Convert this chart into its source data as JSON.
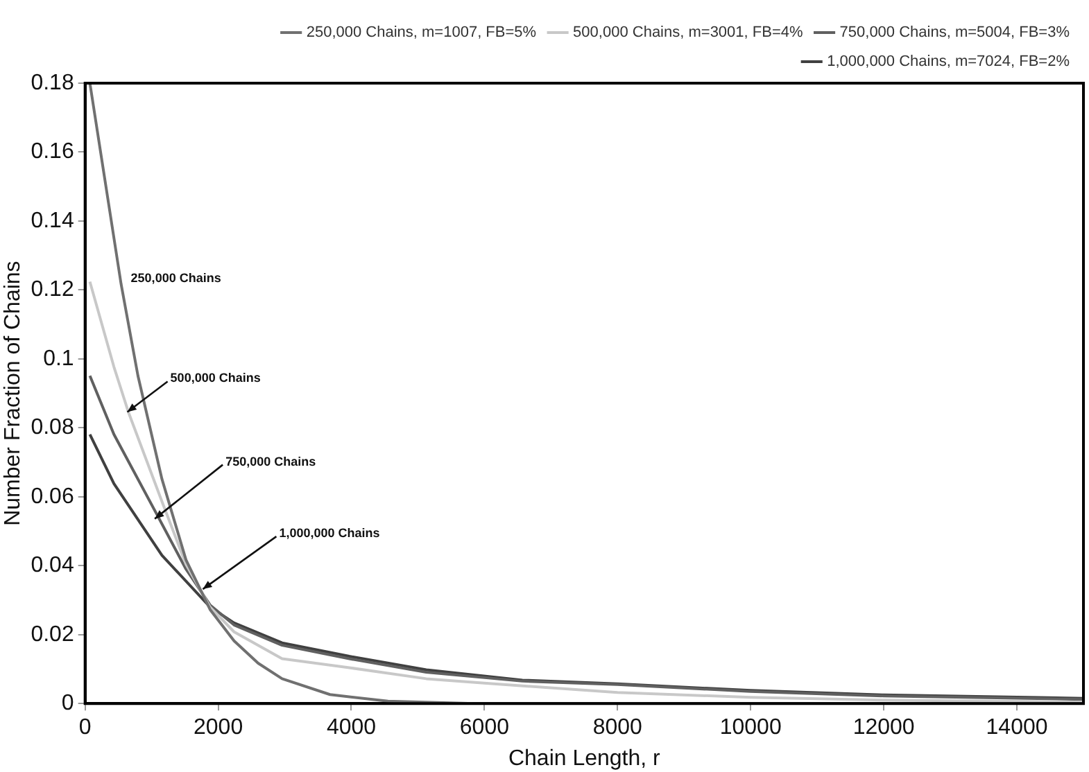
{
  "chart_data": {
    "type": "line",
    "xlabel": "Chain Length, r",
    "ylabel": "Number Fraction of Chains",
    "xlim": [
      0,
      15000
    ],
    "xticks": [
      0,
      2000,
      4000,
      6000,
      8000,
      10000,
      12000,
      14000
    ],
    "ylim": [
      0,
      0.18
    ],
    "yticks": [
      0,
      0.02,
      0.04,
      0.06,
      0.08,
      0.1,
      0.12,
      0.14,
      0.16,
      0.18
    ],
    "grid": false,
    "legend": "top right",
    "marker": "none",
    "line_style": "solid",
    "series": [
      {
        "name": "250,000 Chains, m=1007, FB=5%",
        "color": "#707070",
        "x": [
          72,
          541,
          794,
          1155,
          1516,
          1877,
          2238,
          2600,
          2960,
          3680,
          4550,
          5850,
          8000,
          10000,
          12000,
          15000
        ],
        "values": [
          0.18,
          0.1217,
          0.0951,
          0.0651,
          0.0417,
          0.0273,
          0.0182,
          0.0117,
          0.0072,
          0.0026,
          0.0007,
          0,
          0,
          0,
          0,
          0
        ]
      },
      {
        "name": "500,000 Chains, m=3001, FB=4%",
        "color": "#c8c8c8",
        "x": [
          72,
          433,
          650,
          1155,
          1516,
          1877,
          2238,
          2960,
          3970,
          5126,
          6000,
          8000,
          10000,
          12000,
          15000
        ],
        "values": [
          0.1224,
          0.0977,
          0.0846,
          0.0586,
          0.0404,
          0.028,
          0.0208,
          0.013,
          0.0104,
          0.0072,
          0.0059,
          0.0032,
          0.0018,
          0.001,
          0.0004
        ]
      },
      {
        "name": "750,000 Chains, m=5004, FB=3%",
        "color": "#606060",
        "x": [
          72,
          433,
          1083,
          1516,
          1877,
          2238,
          2960,
          3970,
          5126,
          6570,
          8000,
          10000,
          12000,
          15000
        ],
        "values": [
          0.0951,
          0.0781,
          0.0547,
          0.039,
          0.0286,
          0.0228,
          0.0169,
          0.013,
          0.0091,
          0.0065,
          0.0055,
          0.0035,
          0.0022,
          0.0012
        ]
      },
      {
        "name": "1,000,000 Chains, m=7024, FB=2%",
        "color": "#404040",
        "x": [
          72,
          433,
          1155,
          1877,
          2238,
          2960,
          3970,
          5126,
          6570,
          8000,
          10000,
          12000,
          15000
        ],
        "values": [
          0.0781,
          0.0638,
          0.043,
          0.028,
          0.0234,
          0.0176,
          0.0137,
          0.0098,
          0.0068,
          0.0057,
          0.0038,
          0.0025,
          0.0015
        ]
      }
    ],
    "annotations": [
      {
        "text": "250,000 Chains",
        "x": 541,
        "y": 0.1217
      },
      {
        "text": "500,000 Chains",
        "x": 635,
        "y": 0.0846
      },
      {
        "text": "750,000 Chains",
        "x": 1047,
        "y": 0.0536
      },
      {
        "text": "1,000,000 Chains",
        "x": 1769,
        "y": 0.0332
      }
    ]
  }
}
